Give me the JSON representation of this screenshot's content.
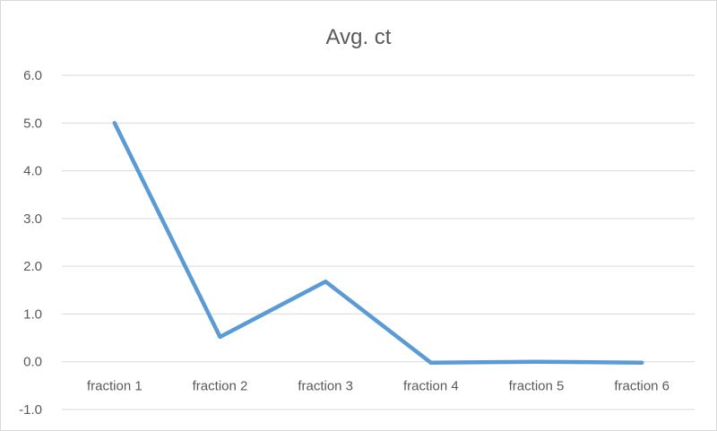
{
  "chart_data": {
    "type": "line",
    "title": "Avg. ct",
    "xlabel": "",
    "ylabel": "",
    "categories": [
      "fraction 1",
      "fraction 2",
      "fraction 3",
      "fraction 4",
      "fraction 5",
      "fraction 6"
    ],
    "series": [
      {
        "values": [
          5.0,
          0.52,
          1.68,
          -0.02,
          0.0,
          -0.02
        ],
        "color": "#5b9bd5"
      }
    ],
    "ylim": [
      -1.0,
      6.0
    ],
    "yticks": [
      -1.0,
      0.0,
      1.0,
      2.0,
      3.0,
      4.0,
      5.0,
      6.0
    ],
    "ytick_labels": [
      "-1.0",
      "0.0",
      "1.0",
      "2.0",
      "3.0",
      "4.0",
      "5.0",
      "6.0"
    ],
    "grid": true,
    "legend": "none",
    "colors": {
      "gridline": "#d9d9d9",
      "text": "#595959"
    }
  }
}
